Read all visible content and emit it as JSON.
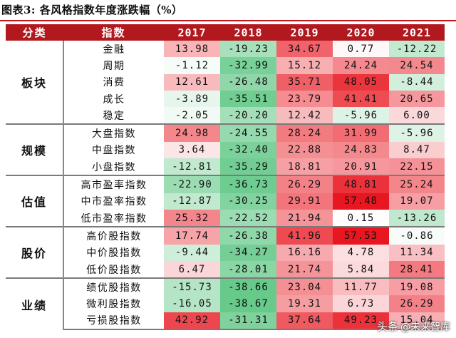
{
  "figure_title": "图表3:   各风格指数年度涨跌幅（%）",
  "headers": [
    "分类",
    "指数",
    "2017",
    "2018",
    "2019",
    "2020",
    "2021"
  ],
  "groups": [
    {
      "category": "板块",
      "rows": [
        {
          "name": "金融",
          "values": [
            "13.98",
            "-19.23",
            "34.67",
            "0.77",
            "-12.22"
          ]
        },
        {
          "name": "周期",
          "values": [
            "-1.12",
            "-32.99",
            "15.12",
            "24.24",
            "24.54"
          ]
        },
        {
          "name": "消费",
          "values": [
            "12.61",
            "-26.48",
            "35.71",
            "48.05",
            "-8.44"
          ]
        },
        {
          "name": "成长",
          "values": [
            "-3.89",
            "-35.51",
            "23.79",
            "41.41",
            "20.65"
          ]
        },
        {
          "name": "稳定",
          "values": [
            "-2.05",
            "-20.20",
            "12.42",
            "-5.96",
            "6.00"
          ]
        }
      ]
    },
    {
      "category": "规模",
      "rows": [
        {
          "name": "大盘指数",
          "values": [
            "24.98",
            "-24.55",
            "28.24",
            "31.99",
            "-5.96"
          ]
        },
        {
          "name": "中盘指数",
          "values": [
            "3.64",
            "-32.40",
            "22.88",
            "24.83",
            "8.47"
          ]
        },
        {
          "name": "小盘指数",
          "values": [
            "-12.81",
            "-35.29",
            "18.81",
            "20.91",
            "22.15"
          ]
        }
      ]
    },
    {
      "category": "估值",
      "rows": [
        {
          "name": "高市盈率指数",
          "values": [
            "-22.90",
            "-36.73",
            "26.29",
            "48.81",
            "25.24"
          ]
        },
        {
          "name": "中市盈率指数",
          "values": [
            "-12.87",
            "-30.25",
            "29.91",
            "57.48",
            "19.07"
          ]
        },
        {
          "name": "低市盈率指数",
          "values": [
            "25.32",
            "-22.52",
            "21.94",
            "0.15",
            "-13.26"
          ]
        }
      ]
    },
    {
      "category": "股价",
      "rows": [
        {
          "name": "高价股指数",
          "values": [
            "17.74",
            "-26.38",
            "41.96",
            "57.53",
            "-0.86"
          ]
        },
        {
          "name": "中价股指数",
          "values": [
            "-9.44",
            "-34.27",
            "16.16",
            "4.78",
            "11.34"
          ]
        },
        {
          "name": "低价股指数",
          "values": [
            "6.47",
            "-28.01",
            "21.74",
            "5.84",
            "28.41"
          ]
        }
      ]
    },
    {
      "category": "业绩",
      "rows": [
        {
          "name": "绩优股指数",
          "values": [
            "-15.73",
            "-38.66",
            "23.04",
            "11.77",
            "19.08"
          ]
        },
        {
          "name": "微利股指数",
          "values": [
            "-16.05",
            "-38.67",
            "19.31",
            "6.73",
            "26.29"
          ]
        },
        {
          "name": "亏损股指数",
          "values": [
            "42.92",
            "-31.31",
            "37.64",
            "49.23",
            "15.04"
          ]
        }
      ]
    }
  ],
  "colors": {
    "header_bg": "#b1191f",
    "positive_max": "#e8141e",
    "negative_max": "#2db55d",
    "neutral": "#ffffff"
  },
  "watermark": {
    "brand": "头条",
    "handle": "@未来智库"
  }
}
